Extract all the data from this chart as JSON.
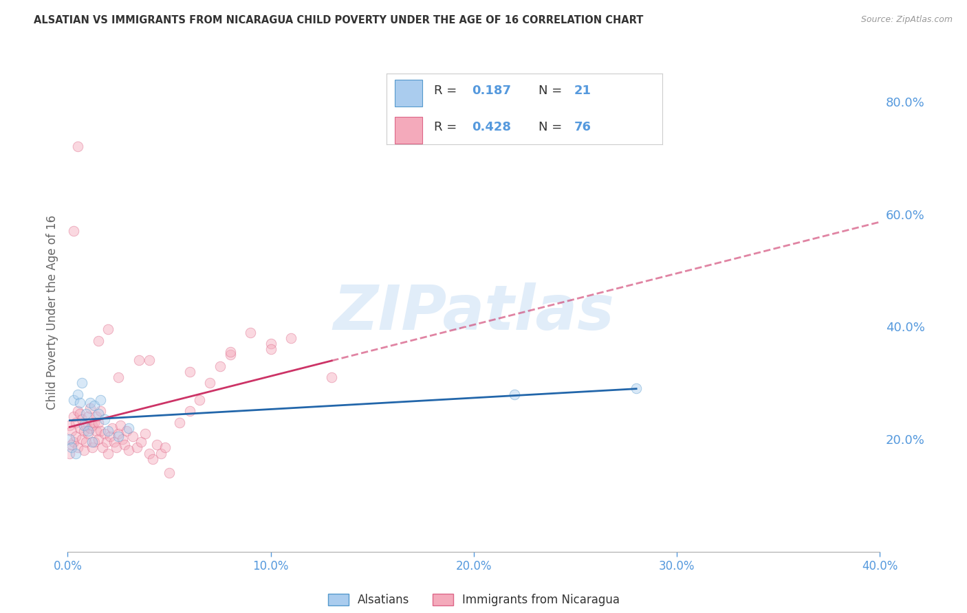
{
  "title": "ALSATIAN VS IMMIGRANTS FROM NICARAGUA CHILD POVERTY UNDER THE AGE OF 16 CORRELATION CHART",
  "source": "Source: ZipAtlas.com",
  "ylabel": "Child Poverty Under the Age of 16",
  "xlim": [
    0.0,
    0.4
  ],
  "ylim": [
    0.0,
    0.85
  ],
  "xticks": [
    0.0,
    0.1,
    0.2,
    0.3,
    0.4
  ],
  "yticks_right": [
    0.2,
    0.4,
    0.6,
    0.8
  ],
  "background_color": "#FFFFFF",
  "grid_color": "#CCCCCC",
  "axis_label_color": "#5599DD",
  "title_color": "#333333",
  "source_color": "#999999",
  "ylabel_color": "#666666",
  "watermark_text": "ZIPatlas",
  "watermark_color": "#AACCEE",
  "marker_size": 110,
  "marker_alpha": 0.45,
  "trend_lw": 2.0,
  "series": [
    {
      "label": "Alsatians",
      "R": 0.187,
      "N": 21,
      "fill_color": "#AACCEE",
      "edge_color": "#5599CC",
      "trend_color": "#2266AA",
      "trend_style": "solid",
      "x": [
        0.001,
        0.002,
        0.003,
        0.004,
        0.005,
        0.006,
        0.007,
        0.008,
        0.009,
        0.01,
        0.011,
        0.012,
        0.013,
        0.015,
        0.016,
        0.018,
        0.02,
        0.025,
        0.03,
        0.22,
        0.28
      ],
      "y": [
        0.2,
        0.185,
        0.27,
        0.175,
        0.28,
        0.265,
        0.3,
        0.225,
        0.245,
        0.215,
        0.265,
        0.195,
        0.26,
        0.245,
        0.27,
        0.235,
        0.215,
        0.205,
        0.22,
        0.28,
        0.29
      ]
    },
    {
      "label": "Immigrants from Nicaragua",
      "R": 0.428,
      "N": 76,
      "fill_color": "#F4AABB",
      "edge_color": "#DD6688",
      "trend_color": "#CC3366",
      "trend_style": "solid",
      "trend_extend_dashed": true,
      "x": [
        0.001,
        0.001,
        0.002,
        0.002,
        0.003,
        0.003,
        0.004,
        0.004,
        0.005,
        0.005,
        0.006,
        0.006,
        0.007,
        0.007,
        0.008,
        0.008,
        0.009,
        0.009,
        0.01,
        0.01,
        0.011,
        0.011,
        0.012,
        0.012,
        0.013,
        0.013,
        0.014,
        0.014,
        0.015,
        0.015,
        0.016,
        0.016,
        0.017,
        0.018,
        0.019,
        0.02,
        0.021,
        0.022,
        0.023,
        0.024,
        0.025,
        0.026,
        0.027,
        0.028,
        0.029,
        0.03,
        0.032,
        0.034,
        0.036,
        0.038,
        0.04,
        0.042,
        0.044,
        0.046,
        0.048,
        0.05,
        0.055,
        0.06,
        0.065,
        0.07,
        0.075,
        0.08,
        0.09,
        0.1,
        0.11,
        0.13,
        0.04,
        0.06,
        0.08,
        0.1,
        0.02,
        0.015,
        0.025,
        0.035,
        0.005,
        0.003
      ],
      "y": [
        0.175,
        0.225,
        0.19,
        0.215,
        0.195,
        0.24,
        0.205,
        0.23,
        0.185,
        0.25,
        0.22,
        0.245,
        0.2,
        0.235,
        0.215,
        0.18,
        0.225,
        0.195,
        0.21,
        0.24,
        0.22,
        0.255,
        0.185,
        0.225,
        0.23,
        0.195,
        0.215,
        0.24,
        0.2,
        0.23,
        0.215,
        0.25,
        0.185,
        0.21,
        0.195,
        0.175,
        0.205,
        0.22,
        0.195,
        0.185,
        0.21,
        0.225,
        0.2,
        0.19,
        0.215,
        0.18,
        0.205,
        0.185,
        0.195,
        0.21,
        0.175,
        0.165,
        0.19,
        0.175,
        0.185,
        0.14,
        0.23,
        0.25,
        0.27,
        0.3,
        0.33,
        0.35,
        0.39,
        0.37,
        0.38,
        0.31,
        0.34,
        0.32,
        0.355,
        0.36,
        0.395,
        0.375,
        0.31,
        0.34,
        0.72,
        0.57
      ]
    }
  ]
}
